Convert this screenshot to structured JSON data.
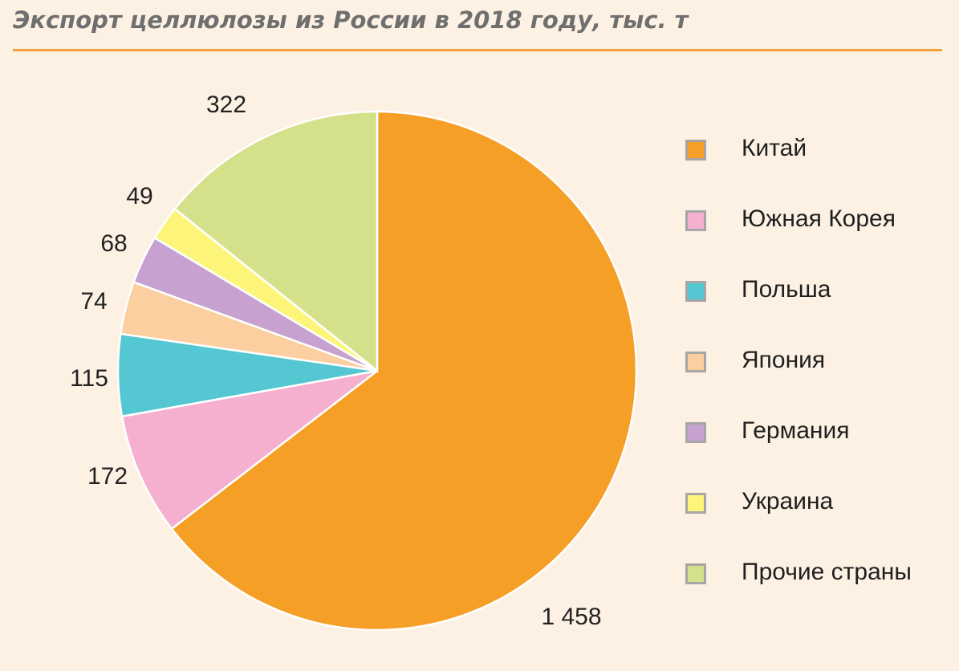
{
  "header": {
    "title": "Экспорт целлюлозы из России в 2018 году, тыс. т"
  },
  "chart_data": {
    "type": "pie",
    "title": "Экспорт целлюлозы из России в 2018 году, тыс. т",
    "slices": [
      {
        "label": "Китай",
        "value": 1458,
        "value_label": "1 458",
        "color": "#f69f27"
      },
      {
        "label": "Южная Корея",
        "value": 172,
        "value_label": "172",
        "color": "#f5b0cf"
      },
      {
        "label": "Польша",
        "value": 115,
        "value_label": "115",
        "color": "#55c7d3"
      },
      {
        "label": "Япония",
        "value": 74,
        "value_label": "74",
        "color": "#fbcfa0"
      },
      {
        "label": "Германия",
        "value": 68,
        "value_label": "68",
        "color": "#c7a2d0"
      },
      {
        "label": "Украина",
        "value": 49,
        "value_label": "49",
        "color": "#fcf57a"
      },
      {
        "label": "Прочие страны",
        "value": 322,
        "value_label": "322",
        "color": "#d4e08a"
      }
    ],
    "legend_position": "right"
  }
}
